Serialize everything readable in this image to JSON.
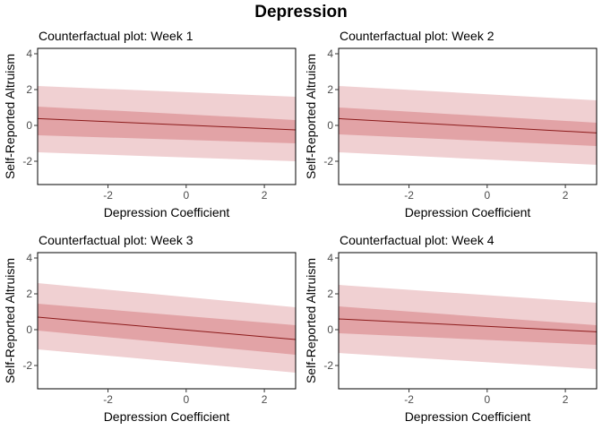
{
  "figure": {
    "title": "Depression"
  },
  "style": {
    "outer_band": "#f0d0d2",
    "inner_band": "#e2a3a6",
    "line": "#8b1a1a",
    "frame": "#000000",
    "text": "#000000",
    "tick_text": "#4d4d4d"
  },
  "chart_data": [
    {
      "type": "area",
      "title": "Counterfactual plot: Week 1",
      "xlabel": "Depression Coefficient",
      "ylabel": "Self-Reported Altruism",
      "xlim": [
        -3.8,
        2.8
      ],
      "ylim": [
        -3.3,
        4.3
      ],
      "xticks": [
        -2,
        0,
        2
      ],
      "yticks": [
        -2,
        0,
        2,
        4
      ],
      "grid": false,
      "x": [
        -3.8,
        2.8
      ],
      "mean": [
        0.38,
        -0.25
      ],
      "inner_lower": [
        -0.55,
        -1.0
      ],
      "inner_upper": [
        1.05,
        0.3
      ],
      "outer_lower": [
        -1.5,
        -2.0
      ],
      "outer_upper": [
        2.2,
        1.6
      ]
    },
    {
      "type": "area",
      "title": "Counterfactual plot: Week 2",
      "xlabel": "Depression Coefficient",
      "ylabel": "Self-Reported Altruism",
      "xlim": [
        -3.8,
        2.8
      ],
      "ylim": [
        -3.3,
        4.3
      ],
      "xticks": [
        -2,
        0,
        2
      ],
      "yticks": [
        -2,
        0,
        2,
        4
      ],
      "grid": false,
      "x": [
        -3.8,
        2.8
      ],
      "mean": [
        0.38,
        -0.42
      ],
      "inner_lower": [
        -0.5,
        -1.15
      ],
      "inner_upper": [
        1.0,
        0.15
      ],
      "outer_lower": [
        -1.5,
        -2.2
      ],
      "outer_upper": [
        2.2,
        1.4
      ]
    },
    {
      "type": "area",
      "title": "Counterfactual plot: Week 3",
      "xlabel": "Depression Coefficient",
      "ylabel": "Self-Reported Altruism",
      "xlim": [
        -3.8,
        2.8
      ],
      "ylim": [
        -3.3,
        4.3
      ],
      "xticks": [
        -2,
        0,
        2
      ],
      "yticks": [
        -2,
        0,
        2,
        4
      ],
      "grid": false,
      "x": [
        -3.8,
        2.8
      ],
      "mean": [
        0.7,
        -0.55
      ],
      "inner_lower": [
        -0.05,
        -1.4
      ],
      "inner_upper": [
        1.45,
        0.25
      ],
      "outer_lower": [
        -1.1,
        -2.4
      ],
      "outer_upper": [
        2.6,
        1.25
      ]
    },
    {
      "type": "area",
      "title": "Counterfactual plot: Week 4",
      "xlabel": "Depression Coefficient",
      "ylabel": "Self-Reported Altruism",
      "xlim": [
        -3.8,
        2.8
      ],
      "ylim": [
        -3.3,
        4.3
      ],
      "xticks": [
        -2,
        0,
        2
      ],
      "yticks": [
        -2,
        0,
        2,
        4
      ],
      "grid": false,
      "x": [
        -3.8,
        2.8
      ],
      "mean": [
        0.6,
        -0.12
      ],
      "inner_lower": [
        -0.2,
        -0.85
      ],
      "inner_upper": [
        1.3,
        0.25
      ],
      "outer_lower": [
        -1.3,
        -2.2
      ],
      "outer_upper": [
        2.5,
        1.5
      ]
    }
  ]
}
